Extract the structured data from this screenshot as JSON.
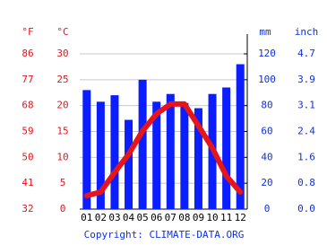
{
  "chart_data": {
    "type": "bar",
    "categories": [
      "01",
      "02",
      "03",
      "04",
      "05",
      "06",
      "07",
      "08",
      "09",
      "10",
      "11",
      "12"
    ],
    "series": [
      {
        "type": "bar",
        "axis": "y2",
        "color": "#0a1eff",
        "values": [
          92,
          83,
          88,
          69,
          100,
          83,
          89,
          82,
          78,
          89,
          94,
          112
        ]
      },
      {
        "type": "line",
        "color": "#e8141b",
        "values": [
          2.6,
          3.3,
          7.1,
          10.6,
          15.1,
          18.4,
          20.3,
          20.3,
          16.1,
          11.8,
          6.4,
          3.3
        ]
      }
    ],
    "ylabel": "°C",
    "ylim": [
      0,
      30
    ],
    "yticks": [
      0,
      5,
      10,
      15,
      20,
      25,
      30
    ],
    "y2label": "mm",
    "y2lim": [
      0,
      120
    ],
    "y2ticks": [
      0,
      20,
      40,
      60,
      80,
      100,
      120
    ],
    "y3label": "°F",
    "y3lim": [
      32,
      86
    ],
    "y3ticks": [
      32,
      41,
      50,
      59,
      68,
      77,
      86
    ],
    "y4label": "inch",
    "y4lim": [
      0,
      4.724
    ],
    "y4ticks": [
      {
        "value": 0,
        "label": "0.0"
      },
      {
        "value": 0.787,
        "label": "0.8"
      },
      {
        "value": 1.575,
        "label": "1.6"
      },
      {
        "value": 2.362,
        "label": "2.4"
      },
      {
        "value": 3.15,
        "label": "3.1"
      },
      {
        "value": 3.937,
        "label": "3.9"
      },
      {
        "value": 4.724,
        "label": "4.7"
      }
    ],
    "grid": true,
    "source": "Copyright: CLIMATE-DATA.ORG"
  }
}
